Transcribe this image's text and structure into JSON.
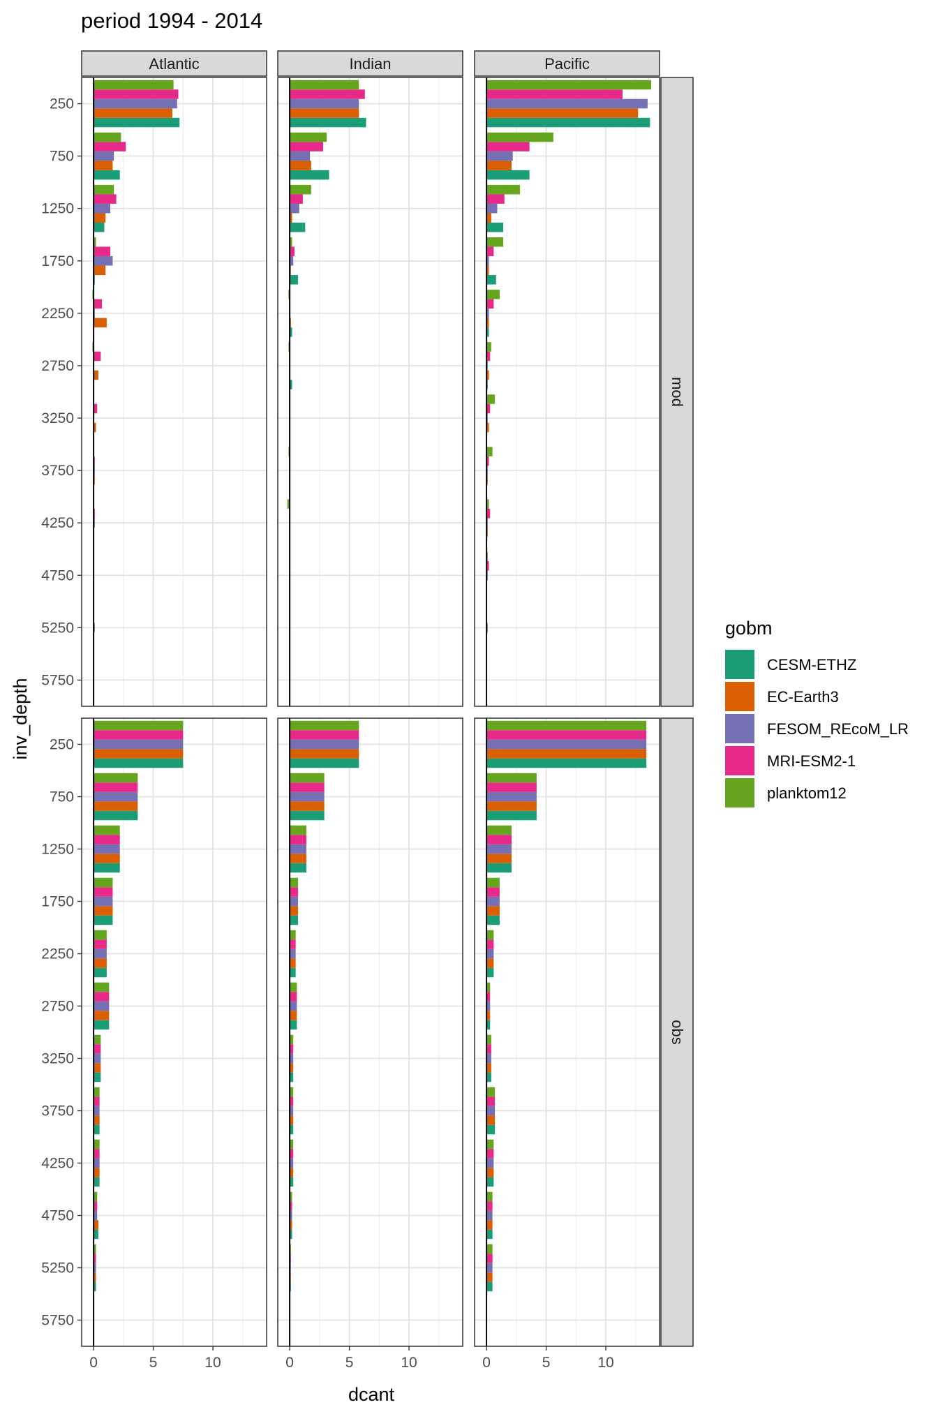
{
  "chart_data": {
    "type": "bar",
    "orientation": "horizontal",
    "title": "period 1994 - 2014",
    "xlabel": "dcant",
    "ylabel": "inv_depth",
    "xlim": [
      -1,
      14.5
    ],
    "x_ticks": [
      "0",
      "5",
      "10"
    ],
    "x_tick_values": [
      0,
      5,
      10
    ],
    "categories": [
      "250",
      "750",
      "1250",
      "1750",
      "2250",
      "2750",
      "3250",
      "3750",
      "4250",
      "4750",
      "5250",
      "5750"
    ],
    "columns": [
      "Atlantic",
      "Indian",
      "Pacific"
    ],
    "rows": [
      "mod",
      "obs"
    ],
    "legend": {
      "title": "gobm",
      "position": "right",
      "entries": [
        "CESM-ETHZ",
        "EC-Earth3",
        "FESOM_REcoM_LR",
        "MRI-ESM2-1",
        "planktom12"
      ]
    },
    "colors": {
      "CESM-ETHZ": "#1b9e77",
      "EC-Earth3": "#d95f02",
      "FESOM_REcoM_LR": "#7570b3",
      "MRI-ESM2-1": "#e7298a",
      "planktom12": "#66a61e"
    },
    "grid": true,
    "panels": [
      {
        "column": "Atlantic",
        "row": "mod",
        "series": {
          "CESM-ETHZ": [
            7.2,
            2.2,
            0.9,
            0.1,
            0.05,
            0.0,
            0.0,
            0.05,
            0.0,
            0.0,
            0.0,
            0.0
          ],
          "EC-Earth3": [
            6.6,
            1.6,
            1.0,
            1.0,
            1.1,
            0.4,
            0.2,
            0.1,
            0.05,
            0.0,
            0.0,
            0.0
          ],
          "FESOM_REcoM_LR": [
            7.0,
            1.7,
            1.4,
            1.6,
            0.1,
            0.05,
            0.05,
            0.1,
            0.1,
            0.05,
            0.1,
            0.0
          ],
          "MRI-ESM2-1": [
            7.1,
            2.7,
            1.9,
            1.4,
            0.7,
            0.6,
            0.3,
            0.1,
            0.1,
            0.05,
            0.05,
            0.0
          ],
          "planktom12": [
            6.7,
            2.3,
            1.7,
            0.2,
            -0.1,
            -0.1,
            0.05,
            0.05,
            0.05,
            0.05,
            0.0,
            0.0
          ]
        }
      },
      {
        "column": "Indian",
        "row": "mod",
        "series": {
          "CESM-ETHZ": [
            6.4,
            3.3,
            1.3,
            0.7,
            0.2,
            0.2,
            0.05,
            0.05,
            0.0,
            0.0,
            0.0,
            0.0
          ],
          "EC-Earth3": [
            5.8,
            1.8,
            0.2,
            0.1,
            0.1,
            0.0,
            0.0,
            0.0,
            0.05,
            0.0,
            0.0,
            0.0
          ],
          "FESOM_REcoM_LR": [
            5.8,
            1.7,
            0.8,
            0.3,
            0.05,
            0.05,
            0.05,
            0.05,
            0.05,
            0.05,
            0.0,
            0.0
          ],
          "MRI-ESM2-1": [
            6.3,
            2.8,
            1.1,
            0.4,
            0.05,
            0.0,
            0.0,
            0.05,
            0.05,
            0.0,
            0.0,
            0.0
          ],
          "planktom12": [
            5.8,
            3.1,
            1.8,
            0.2,
            -0.1,
            -0.1,
            0.05,
            -0.1,
            -0.2,
            0.05,
            0.0,
            0.0
          ]
        }
      },
      {
        "column": "Pacific",
        "row": "mod",
        "series": {
          "CESM-ETHZ": [
            13.7,
            3.6,
            1.4,
            0.8,
            0.2,
            0.1,
            0.05,
            0.05,
            0.05,
            0.05,
            0.05,
            0.0
          ],
          "EC-Earth3": [
            12.7,
            2.1,
            0.4,
            0.2,
            0.2,
            0.2,
            0.2,
            0.1,
            0.1,
            0.05,
            0.0,
            0.0
          ],
          "FESOM_REcoM_LR": [
            13.5,
            2.2,
            0.9,
            0.2,
            0.2,
            0.1,
            0.1,
            0.1,
            0.1,
            0.1,
            0.1,
            0.05
          ],
          "MRI-ESM2-1": [
            11.4,
            3.6,
            1.5,
            0.6,
            0.6,
            0.3,
            0.3,
            0.2,
            0.3,
            0.2,
            0.05,
            0.0
          ],
          "planktom12": [
            13.8,
            5.6,
            2.8,
            1.4,
            1.1,
            0.4,
            0.7,
            0.5,
            0.2,
            0.1,
            0.0,
            0.05
          ]
        }
      },
      {
        "column": "Atlantic",
        "row": "obs",
        "series": {
          "CESM-ETHZ": [
            7.5,
            3.7,
            2.2,
            1.6,
            1.1,
            1.3,
            0.6,
            0.5,
            0.5,
            0.4,
            0.2,
            0.0
          ],
          "EC-Earth3": [
            7.5,
            3.7,
            2.2,
            1.6,
            1.1,
            1.3,
            0.6,
            0.5,
            0.5,
            0.4,
            0.2,
            0.0
          ],
          "FESOM_REcoM_LR": [
            7.5,
            3.7,
            2.2,
            1.6,
            1.1,
            1.3,
            0.6,
            0.5,
            0.5,
            0.3,
            0.2,
            0.0
          ],
          "MRI-ESM2-1": [
            7.5,
            3.7,
            2.2,
            1.6,
            1.1,
            1.3,
            0.6,
            0.5,
            0.5,
            0.3,
            0.2,
            0.0
          ],
          "planktom12": [
            7.5,
            3.7,
            2.2,
            1.6,
            1.1,
            1.3,
            0.6,
            0.5,
            0.5,
            0.3,
            0.2,
            0.0
          ]
        }
      },
      {
        "column": "Indian",
        "row": "obs",
        "series": {
          "CESM-ETHZ": [
            5.8,
            2.9,
            1.4,
            0.7,
            0.5,
            0.6,
            0.3,
            0.3,
            0.3,
            0.2,
            0.1,
            0.0
          ],
          "EC-Earth3": [
            5.8,
            2.9,
            1.4,
            0.7,
            0.5,
            0.6,
            0.3,
            0.3,
            0.3,
            0.2,
            0.1,
            0.0
          ],
          "FESOM_REcoM_LR": [
            5.8,
            2.9,
            1.4,
            0.7,
            0.5,
            0.6,
            0.3,
            0.3,
            0.3,
            0.2,
            0.1,
            0.0
          ],
          "MRI-ESM2-1": [
            5.8,
            2.9,
            1.4,
            0.7,
            0.5,
            0.6,
            0.3,
            0.3,
            0.3,
            0.2,
            0.1,
            0.0
          ],
          "planktom12": [
            5.8,
            2.9,
            1.4,
            0.7,
            0.5,
            0.6,
            0.3,
            0.3,
            0.3,
            0.2,
            0.1,
            0.0
          ]
        }
      },
      {
        "column": "Pacific",
        "row": "obs",
        "series": {
          "CESM-ETHZ": [
            13.4,
            4.2,
            2.1,
            1.1,
            0.6,
            0.3,
            0.4,
            0.7,
            0.6,
            0.5,
            0.5,
            0.05
          ],
          "EC-Earth3": [
            13.4,
            4.2,
            2.1,
            1.1,
            0.6,
            0.3,
            0.4,
            0.7,
            0.6,
            0.5,
            0.5,
            0.05
          ],
          "FESOM_REcoM_LR": [
            13.4,
            4.2,
            2.1,
            1.1,
            0.6,
            0.3,
            0.4,
            0.7,
            0.6,
            0.5,
            0.5,
            0.05
          ],
          "MRI-ESM2-1": [
            13.4,
            4.2,
            2.1,
            1.1,
            0.6,
            0.3,
            0.4,
            0.7,
            0.6,
            0.5,
            0.5,
            0.05
          ],
          "planktom12": [
            13.4,
            4.2,
            2.1,
            1.1,
            0.6,
            0.3,
            0.4,
            0.7,
            0.6,
            0.5,
            0.5,
            0.05
          ]
        }
      }
    ]
  }
}
